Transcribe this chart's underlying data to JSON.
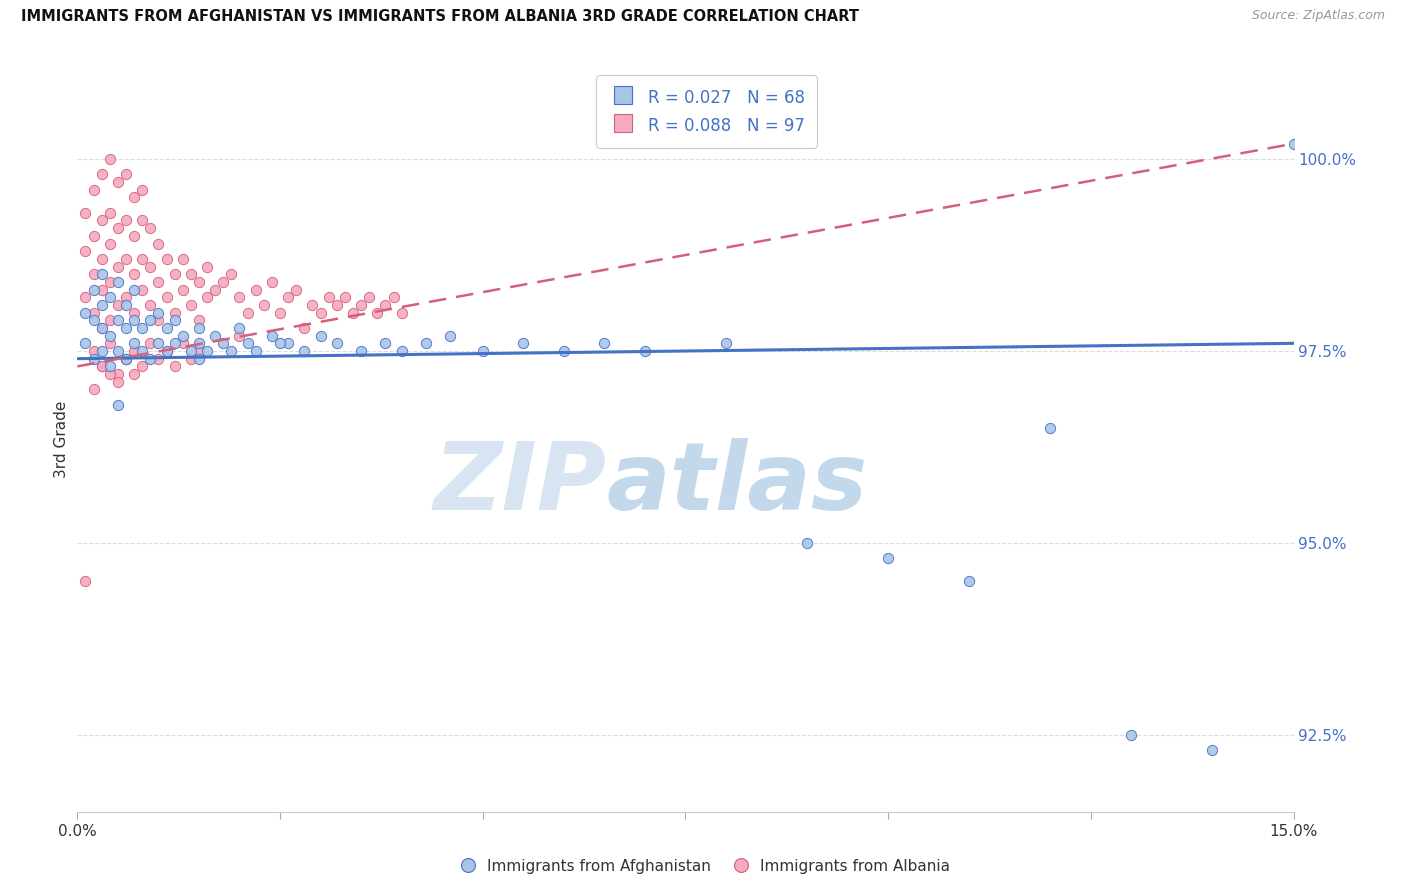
{
  "title": "IMMIGRANTS FROM AFGHANISTAN VS IMMIGRANTS FROM ALBANIA 3RD GRADE CORRELATION CHART",
  "source": "Source: ZipAtlas.com",
  "ylabel": "3rd Grade",
  "y_ticks": [
    92.5,
    95.0,
    97.5,
    100.0
  ],
  "y_tick_labels": [
    "92.5%",
    "95.0%",
    "97.5%",
    "100.0%"
  ],
  "x_ticks": [
    0.0,
    0.025,
    0.05,
    0.075,
    0.1,
    0.125,
    0.15
  ],
  "x_tick_labels": [
    "0.0%",
    "",
    "",
    "",
    "",
    "",
    "15.0%"
  ],
  "xlim": [
    0.0,
    0.15
  ],
  "ylim": [
    91.5,
    101.2
  ],
  "afghanistan_color": "#aac4e8",
  "albania_color": "#f5aabf",
  "afghanistan_line_color": "#4472c4",
  "albania_line_color": "#d4607a",
  "legend_text_color": "#4472c4",
  "right_axis_color": "#4472c4",
  "afghanistan_R": "0.027",
  "afghanistan_N": "68",
  "albania_R": "0.088",
  "albania_N": "97",
  "watermark_zip": "ZIP",
  "watermark_atlas": "atlas",
  "afghanistan_scatter_x": [
    0.001,
    0.001,
    0.002,
    0.002,
    0.002,
    0.003,
    0.003,
    0.003,
    0.003,
    0.004,
    0.004,
    0.004,
    0.005,
    0.005,
    0.005,
    0.006,
    0.006,
    0.006,
    0.007,
    0.007,
    0.007,
    0.008,
    0.008,
    0.009,
    0.009,
    0.01,
    0.01,
    0.011,
    0.011,
    0.012,
    0.012,
    0.013,
    0.014,
    0.015,
    0.015,
    0.016,
    0.017,
    0.018,
    0.019,
    0.02,
    0.021,
    0.022,
    0.024,
    0.026,
    0.028,
    0.03,
    0.032,
    0.035,
    0.038,
    0.04,
    0.043,
    0.046,
    0.05,
    0.055,
    0.06,
    0.065,
    0.07,
    0.08,
    0.09,
    0.1,
    0.11,
    0.12,
    0.13,
    0.14,
    0.005,
    0.015,
    0.025,
    0.15
  ],
  "afghanistan_scatter_y": [
    97.6,
    98.0,
    97.4,
    97.9,
    98.3,
    97.5,
    97.8,
    98.1,
    98.5,
    97.3,
    97.7,
    98.2,
    97.5,
    97.9,
    98.4,
    97.4,
    97.8,
    98.1,
    97.6,
    97.9,
    98.3,
    97.5,
    97.8,
    97.4,
    97.9,
    97.6,
    98.0,
    97.5,
    97.8,
    97.6,
    97.9,
    97.7,
    97.5,
    97.8,
    97.6,
    97.5,
    97.7,
    97.6,
    97.5,
    97.8,
    97.6,
    97.5,
    97.7,
    97.6,
    97.5,
    97.7,
    97.6,
    97.5,
    97.6,
    97.5,
    97.6,
    97.7,
    97.5,
    97.6,
    97.5,
    97.6,
    97.5,
    97.6,
    95.0,
    94.8,
    94.5,
    96.5,
    92.5,
    92.3,
    96.8,
    97.4,
    97.6,
    100.2
  ],
  "albania_scatter_x": [
    0.001,
    0.001,
    0.001,
    0.002,
    0.002,
    0.002,
    0.002,
    0.003,
    0.003,
    0.003,
    0.003,
    0.003,
    0.004,
    0.004,
    0.004,
    0.004,
    0.004,
    0.005,
    0.005,
    0.005,
    0.005,
    0.006,
    0.006,
    0.006,
    0.006,
    0.007,
    0.007,
    0.007,
    0.007,
    0.008,
    0.008,
    0.008,
    0.008,
    0.009,
    0.009,
    0.009,
    0.01,
    0.01,
    0.01,
    0.011,
    0.011,
    0.012,
    0.012,
    0.013,
    0.013,
    0.014,
    0.014,
    0.015,
    0.015,
    0.016,
    0.016,
    0.017,
    0.018,
    0.019,
    0.02,
    0.02,
    0.021,
    0.022,
    0.023,
    0.024,
    0.025,
    0.026,
    0.027,
    0.028,
    0.029,
    0.03,
    0.031,
    0.032,
    0.033,
    0.034,
    0.035,
    0.036,
    0.037,
    0.038,
    0.039,
    0.04,
    0.002,
    0.003,
    0.004,
    0.005,
    0.006,
    0.007,
    0.008,
    0.009,
    0.01,
    0.011,
    0.012,
    0.013,
    0.014,
    0.015,
    0.001,
    0.002,
    0.004,
    0.003,
    0.005,
    0.006,
    0.007
  ],
  "albania_scatter_y": [
    98.2,
    98.8,
    99.3,
    98.0,
    98.5,
    99.0,
    99.6,
    97.8,
    98.3,
    98.7,
    99.2,
    99.8,
    97.9,
    98.4,
    98.9,
    99.3,
    100.0,
    98.1,
    98.6,
    99.1,
    99.7,
    98.2,
    98.7,
    99.2,
    99.8,
    98.0,
    98.5,
    99.0,
    99.5,
    98.3,
    98.7,
    99.2,
    99.6,
    98.1,
    98.6,
    99.1,
    97.9,
    98.4,
    98.9,
    98.2,
    98.7,
    98.0,
    98.5,
    98.3,
    98.7,
    98.1,
    98.5,
    97.9,
    98.4,
    98.2,
    98.6,
    98.3,
    98.4,
    98.5,
    97.7,
    98.2,
    98.0,
    98.3,
    98.1,
    98.4,
    98.0,
    98.2,
    98.3,
    97.8,
    98.1,
    98.0,
    98.2,
    98.1,
    98.2,
    98.0,
    98.1,
    98.2,
    98.0,
    98.1,
    98.2,
    98.0,
    97.5,
    97.3,
    97.6,
    97.2,
    97.4,
    97.5,
    97.3,
    97.6,
    97.4,
    97.5,
    97.3,
    97.6,
    97.4,
    97.5,
    94.5,
    97.0,
    97.2,
    97.3,
    97.1,
    97.4,
    97.2
  ],
  "afg_line_x": [
    0.0,
    0.15
  ],
  "afg_line_y": [
    97.4,
    97.6
  ],
  "alb_line_x": [
    0.0,
    0.15
  ],
  "alb_line_y": [
    97.3,
    100.2
  ]
}
